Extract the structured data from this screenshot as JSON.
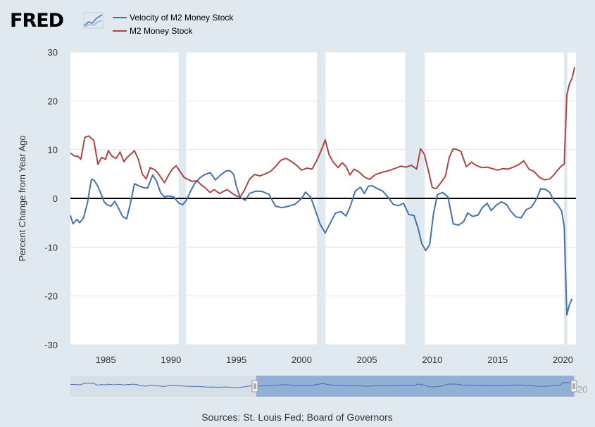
{
  "logo": {
    "text": "FRED"
  },
  "legend": [
    {
      "name": "Velocity of M2 Money Stock",
      "color": "#4572a7"
    },
    {
      "name": "M2 Money Stock",
      "color": "#aa4643"
    }
  ],
  "source_text": "Sources: St. Louis Fed; Board of Governors",
  "navigator": {
    "handle_right_label": "20"
  },
  "colors": {
    "background": "#e1e9f0",
    "plot_background": "#ffffff",
    "recession": "#e1e9f0",
    "velocity": "#4572a7",
    "m2": "#aa4643",
    "zero_line": "#000000",
    "navigator_fill": "#7b9fcf",
    "navigator_outline": "#4a6fa5"
  },
  "chart_data": {
    "type": "line",
    "title": "",
    "xlabel": "",
    "ylabel": "Percent Change from Year Ago",
    "xlim": [
      1982.3,
      2021.0
    ],
    "ylim": [
      -30,
      30
    ],
    "y_ticks": [
      -30,
      -20,
      -10,
      0,
      10,
      20,
      30
    ],
    "x_ticks": [
      1985,
      1990,
      1995,
      2000,
      2005,
      2010,
      2015,
      2020
    ],
    "grid": {
      "horizontal": true,
      "vertical": false
    },
    "legend_position": "top-left",
    "zero_line": true,
    "recessions": [
      [
        1990.58,
        1991.17
      ],
      [
        2001.17,
        2001.83
      ],
      [
        2007.92,
        2009.42
      ],
      [
        2020.08,
        2020.33
      ]
    ],
    "series": [
      {
        "name": "Velocity of M2 Money Stock",
        "x": [
          1982.3,
          1982.5,
          1982.8,
          1983.0,
          1983.3,
          1983.6,
          1983.9,
          1984.1,
          1984.4,
          1984.7,
          1984.9,
          1985.1,
          1985.4,
          1985.7,
          1986.0,
          1986.3,
          1986.6,
          1986.9,
          1987.2,
          1987.6,
          1987.9,
          1988.2,
          1988.6,
          1988.9,
          1989.2,
          1989.5,
          1989.8,
          1990.2,
          1990.6,
          1990.9,
          1991.2,
          1991.5,
          1991.8,
          1992.2,
          1992.6,
          1993.0,
          1993.4,
          1993.8,
          1994.2,
          1994.5,
          1994.8,
          1995.0,
          1995.3,
          1995.7,
          1996.0,
          1996.5,
          1997.0,
          1997.5,
          1998.0,
          1998.5,
          1999.0,
          1999.5,
          2000.0,
          2000.3,
          2000.7,
          2001.0,
          2001.4,
          2001.8,
          2002.2,
          2002.6,
          2003.0,
          2003.4,
          2003.7,
          2004.1,
          2004.5,
          2004.8,
          2005.1,
          2005.4,
          2005.8,
          2006.2,
          2006.6,
          2007.0,
          2007.4,
          2007.8,
          2008.2,
          2008.6,
          2008.9,
          2009.2,
          2009.5,
          2009.8,
          2010.1,
          2010.4,
          2010.8,
          2011.2,
          2011.6,
          2012.0,
          2012.4,
          2012.7,
          2013.1,
          2013.5,
          2013.8,
          2014.2,
          2014.5,
          2014.9,
          2015.3,
          2015.7,
          2016.0,
          2016.4,
          2016.8,
          2017.2,
          2017.6,
          2018.0,
          2018.3,
          2018.7,
          2019.0,
          2019.3,
          2019.6,
          2019.9,
          2020.1,
          2020.3,
          2020.5,
          2020.7
        ],
        "values": [
          -3.5,
          -5.2,
          -4.3,
          -5.0,
          -4.0,
          -1.0,
          3.9,
          3.8,
          2.5,
          0.5,
          -0.8,
          -1.3,
          -1.6,
          -0.6,
          -2.1,
          -3.7,
          -4.2,
          -1.0,
          3.0,
          2.5,
          2.2,
          2.1,
          4.8,
          3.5,
          1.2,
          0.3,
          0.5,
          0.3,
          -1.0,
          -1.3,
          -0.3,
          1.5,
          3.0,
          4.2,
          4.9,
          5.3,
          3.8,
          4.8,
          5.6,
          5.7,
          4.9,
          2.5,
          0.2,
          -0.4,
          1.0,
          1.5,
          1.4,
          0.8,
          -1.6,
          -1.9,
          -1.6,
          -1.2,
          0.0,
          1.3,
          0.2,
          -2.0,
          -5.2,
          -7.1,
          -5.0,
          -3.0,
          -2.7,
          -3.6,
          -1.8,
          1.5,
          2.3,
          1.0,
          2.5,
          2.6,
          2.0,
          1.5,
          0.3,
          -1.2,
          -1.5,
          -1.0,
          -3.3,
          -3.5,
          -6.0,
          -9.3,
          -10.7,
          -9.5,
          -3.0,
          0.8,
          1.2,
          0.3,
          -5.2,
          -5.5,
          -4.8,
          -3.0,
          -3.7,
          -3.4,
          -2.0,
          -1.0,
          -2.5,
          -1.4,
          -0.7,
          -1.3,
          -2.6,
          -3.8,
          -4.0,
          -2.3,
          -1.8,
          0.0,
          2.0,
          1.8,
          1.2,
          -0.5,
          -1.3,
          -2.6,
          -5.8,
          -23.9,
          -21.8,
          -20.6
        ]
      },
      {
        "name": "M2 Money Stock",
        "x": [
          1982.3,
          1982.6,
          1982.9,
          1983.1,
          1983.4,
          1983.7,
          1983.95,
          1984.1,
          1984.4,
          1984.7,
          1985.0,
          1985.2,
          1985.5,
          1985.8,
          1986.1,
          1986.4,
          1986.6,
          1986.9,
          1987.2,
          1987.5,
          1987.8,
          1988.1,
          1988.4,
          1988.8,
          1989.1,
          1989.5,
          1989.8,
          1990.1,
          1990.4,
          1990.7,
          1991.0,
          1991.3,
          1991.6,
          1992.0,
          1992.3,
          1992.6,
          1993.0,
          1993.3,
          1993.7,
          1994.0,
          1994.3,
          1994.6,
          1995.0,
          1995.3,
          1995.6,
          1996.0,
          1996.4,
          1996.8,
          1997.2,
          1997.6,
          1998.0,
          1998.4,
          1998.8,
          1999.2,
          1999.6,
          2000.0,
          2000.4,
          2000.8,
          2001.2,
          2001.6,
          2001.8,
          2002.1,
          2002.4,
          2002.8,
          2003.1,
          2003.4,
          2003.7,
          2004.0,
          2004.4,
          2004.8,
          2005.2,
          2005.6,
          2006.0,
          2006.4,
          2006.8,
          2007.2,
          2007.6,
          2008.0,
          2008.4,
          2008.8,
          2009.1,
          2009.4,
          2009.7,
          2010.0,
          2010.3,
          2010.6,
          2011.0,
          2011.3,
          2011.6,
          2011.9,
          2012.2,
          2012.6,
          2013.0,
          2013.4,
          2013.8,
          2014.2,
          2014.6,
          2015.0,
          2015.4,
          2015.8,
          2016.2,
          2016.6,
          2017.0,
          2017.4,
          2017.8,
          2018.2,
          2018.6,
          2019.0,
          2019.3,
          2019.6,
          2019.9,
          2020.1,
          2020.3,
          2020.5,
          2020.7,
          2020.9
        ],
        "values": [
          9.3,
          8.7,
          8.6,
          8.0,
          12.5,
          12.8,
          12.2,
          11.8,
          7.0,
          8.4,
          8.0,
          9.8,
          8.6,
          8.2,
          9.5,
          7.5,
          8.3,
          9.0,
          9.8,
          8.0,
          5.0,
          4.0,
          6.3,
          5.8,
          4.8,
          3.2,
          4.7,
          6.0,
          6.7,
          5.5,
          4.3,
          3.9,
          3.5,
          3.6,
          2.8,
          2.2,
          1.2,
          1.8,
          1.0,
          1.4,
          1.8,
          1.2,
          0.5,
          0.3,
          1.6,
          3.9,
          4.9,
          4.6,
          5.0,
          5.5,
          6.5,
          7.8,
          8.2,
          7.6,
          6.8,
          5.8,
          6.2,
          6.0,
          8.0,
          10.5,
          12.0,
          9.0,
          7.5,
          6.3,
          7.3,
          6.5,
          4.8,
          6.0,
          5.4,
          4.4,
          3.9,
          4.8,
          5.2,
          5.5,
          5.8,
          6.2,
          6.6,
          6.4,
          6.8,
          6.0,
          10.2,
          9.0,
          5.7,
          2.2,
          2.0,
          3.0,
          4.5,
          8.4,
          10.2,
          10.0,
          9.6,
          6.5,
          7.4,
          6.7,
          6.3,
          6.4,
          6.1,
          5.8,
          6.1,
          6.0,
          6.4,
          6.9,
          7.7,
          6.0,
          5.5,
          4.3,
          3.8,
          4.0,
          4.8,
          5.8,
          6.7,
          7.0,
          21.2,
          23.5,
          24.6,
          26.9
        ]
      }
    ]
  }
}
